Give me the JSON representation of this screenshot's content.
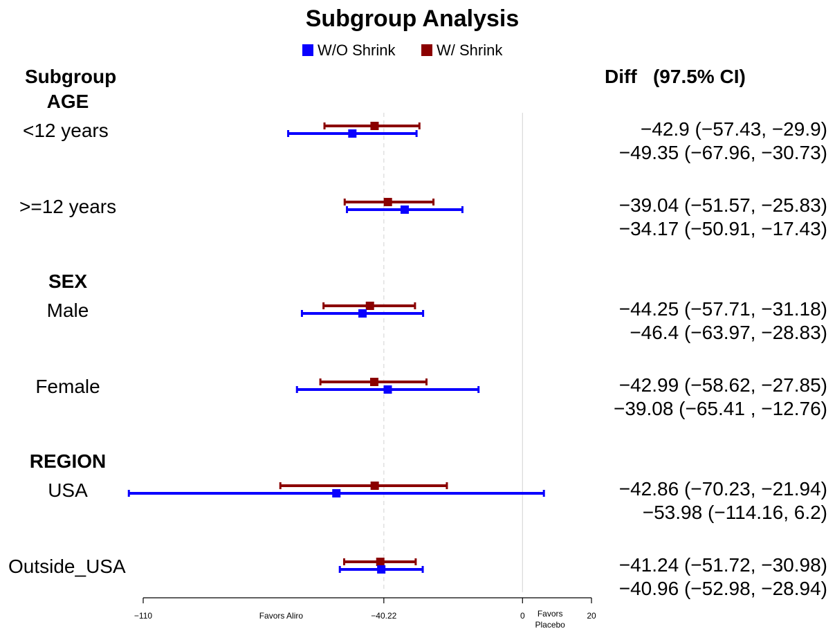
{
  "chart_data": {
    "type": "forest",
    "title": "Subgroup Analysis",
    "legend": {
      "placement": "top-center"
    },
    "header": {
      "left": "Subgroup",
      "right": "Diff   (97.5% CI)"
    },
    "xlim": [
      -110,
      20
    ],
    "xticks": [
      {
        "value": -110,
        "label": "−110"
      },
      {
        "value": -40.22,
        "label": "−40.22"
      },
      {
        "value": 0,
        "label": "0"
      },
      {
        "value": 20,
        "label": "20"
      }
    ],
    "axis_notes": [
      {
        "text": "Favors Aliro",
        "x": -70
      },
      {
        "text": "Favors",
        "x": 8
      },
      {
        "text": "Placebo",
        "x": 8
      }
    ],
    "reference_lines": [
      {
        "x": 0,
        "style": "solid",
        "color": "#d9d9d9"
      },
      {
        "x": -40.22,
        "style": "dashed",
        "color": "#d9d9d9"
      }
    ],
    "series": [
      {
        "key": "wo",
        "name": "W/O Shrink",
        "color": "#0a00ff"
      },
      {
        "key": "w",
        "name": "W/ Shrink",
        "color": "#8b0000"
      }
    ],
    "groups": [
      {
        "label": "AGE",
        "subgroups": [
          {
            "label": "<12 years",
            "w": {
              "est": -42.9,
              "lo": -57.43,
              "hi": -29.9,
              "text": "−42.9   (−57.43,  −29.9)"
            },
            "wo": {
              "est": -49.35,
              "lo": -67.96,
              "hi": -30.73,
              "text": "−49.35  (−67.96,  −30.73)"
            }
          },
          {
            "label": ">=12 years",
            "w": {
              "est": -39.04,
              "lo": -51.57,
              "hi": -25.83,
              "text": "−39.04  (−51.57,  −25.83)"
            },
            "wo": {
              "est": -34.17,
              "lo": -50.91,
              "hi": -17.43,
              "text": "−34.17  (−50.91,  −17.43)"
            }
          }
        ]
      },
      {
        "label": "SEX",
        "subgroups": [
          {
            "label": "Male",
            "w": {
              "est": -44.25,
              "lo": -57.71,
              "hi": -31.18,
              "text": "−44.25  (−57.71,  −31.18)"
            },
            "wo": {
              "est": -46.4,
              "lo": -63.97,
              "hi": -28.83,
              "text": "−46.4   (−63.97,  −28.83)"
            }
          },
          {
            "label": "Female",
            "w": {
              "est": -42.99,
              "lo": -58.62,
              "hi": -27.85,
              "text": "−42.99  (−58.62,  −27.85)"
            },
            "wo": {
              "est": -39.08,
              "lo": -65.41,
              "hi": -12.76,
              "text": "−39.08  (−65.41 ,  −12.76)"
            }
          }
        ]
      },
      {
        "label": "REGION",
        "subgroups": [
          {
            "label": "USA",
            "w": {
              "est": -42.86,
              "lo": -70.23,
              "hi": -21.94,
              "text": "−42.86  (−70.23,  −21.94)"
            },
            "wo": {
              "est": -53.98,
              "lo": -114.16,
              "hi": 6.2,
              "text": "−53.98 (−114.16,     6.2)"
            }
          },
          {
            "label": "Outside_USA",
            "w": {
              "est": -41.24,
              "lo": -51.72,
              "hi": -30.98,
              "text": "−41.24  (−51.72,  −30.98)"
            },
            "wo": {
              "est": -40.96,
              "lo": -52.98,
              "hi": -28.94,
              "text": "−40.96  (−52.98,  −28.94)"
            }
          }
        ]
      }
    ]
  }
}
